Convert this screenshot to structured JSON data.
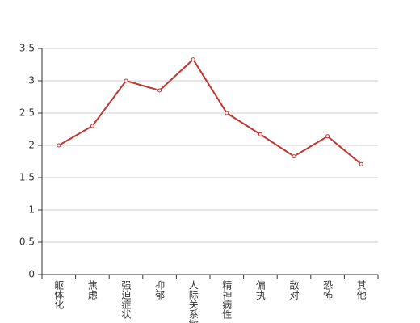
{
  "chart_data": {
    "type": "line",
    "categories": [
      "躯体化",
      "焦虑",
      "强迫症状",
      "抑郁",
      "人际关系敏感",
      "精神病性",
      "偏执",
      "敌对",
      "恐怖",
      "其他"
    ],
    "series": [
      {
        "color": "#c23531",
        "values": [
          2.0,
          2.3,
          3.0,
          2.85,
          3.33,
          2.5,
          2.17,
          1.83,
          2.14,
          1.71
        ]
      }
    ],
    "ylim": [
      0,
      3.5
    ],
    "yticks": [
      0,
      0.5,
      1,
      1.5,
      2,
      2.5,
      3,
      3.5
    ],
    "grid": true
  }
}
